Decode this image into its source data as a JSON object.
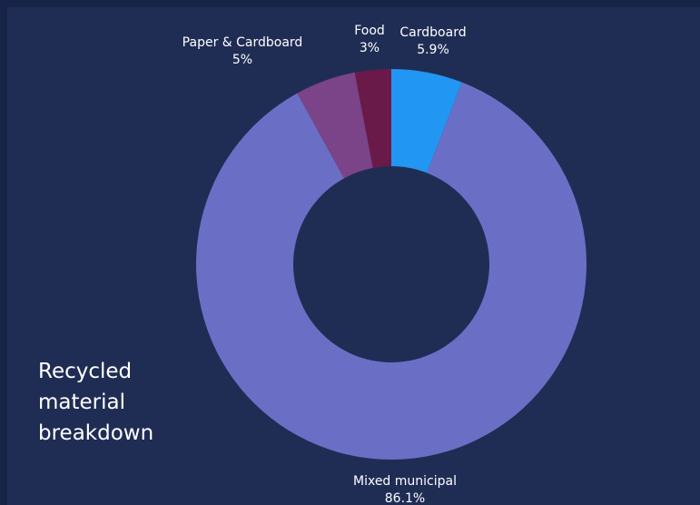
{
  "chart_data": {
    "type": "pie",
    "title": "Recycled material breakdown",
    "categories": [
      "Cardboard",
      "Mixed municipal",
      "Paper & Cardboard",
      "Food"
    ],
    "values": [
      5.9,
      86.1,
      5,
      3
    ],
    "value_labels": [
      "5.9%",
      "86.1%",
      "5%",
      "3%"
    ],
    "colors": [
      "#2196f3",
      "#6a6fc5",
      "#7b4388",
      "#6a1a48"
    ],
    "donut": true,
    "start_angle_deg": 0,
    "direction": "clockwise",
    "legend": "none"
  },
  "colors": {
    "page_background": "#172448",
    "panel_background": "#1f2d55",
    "text": "#ffffff"
  }
}
